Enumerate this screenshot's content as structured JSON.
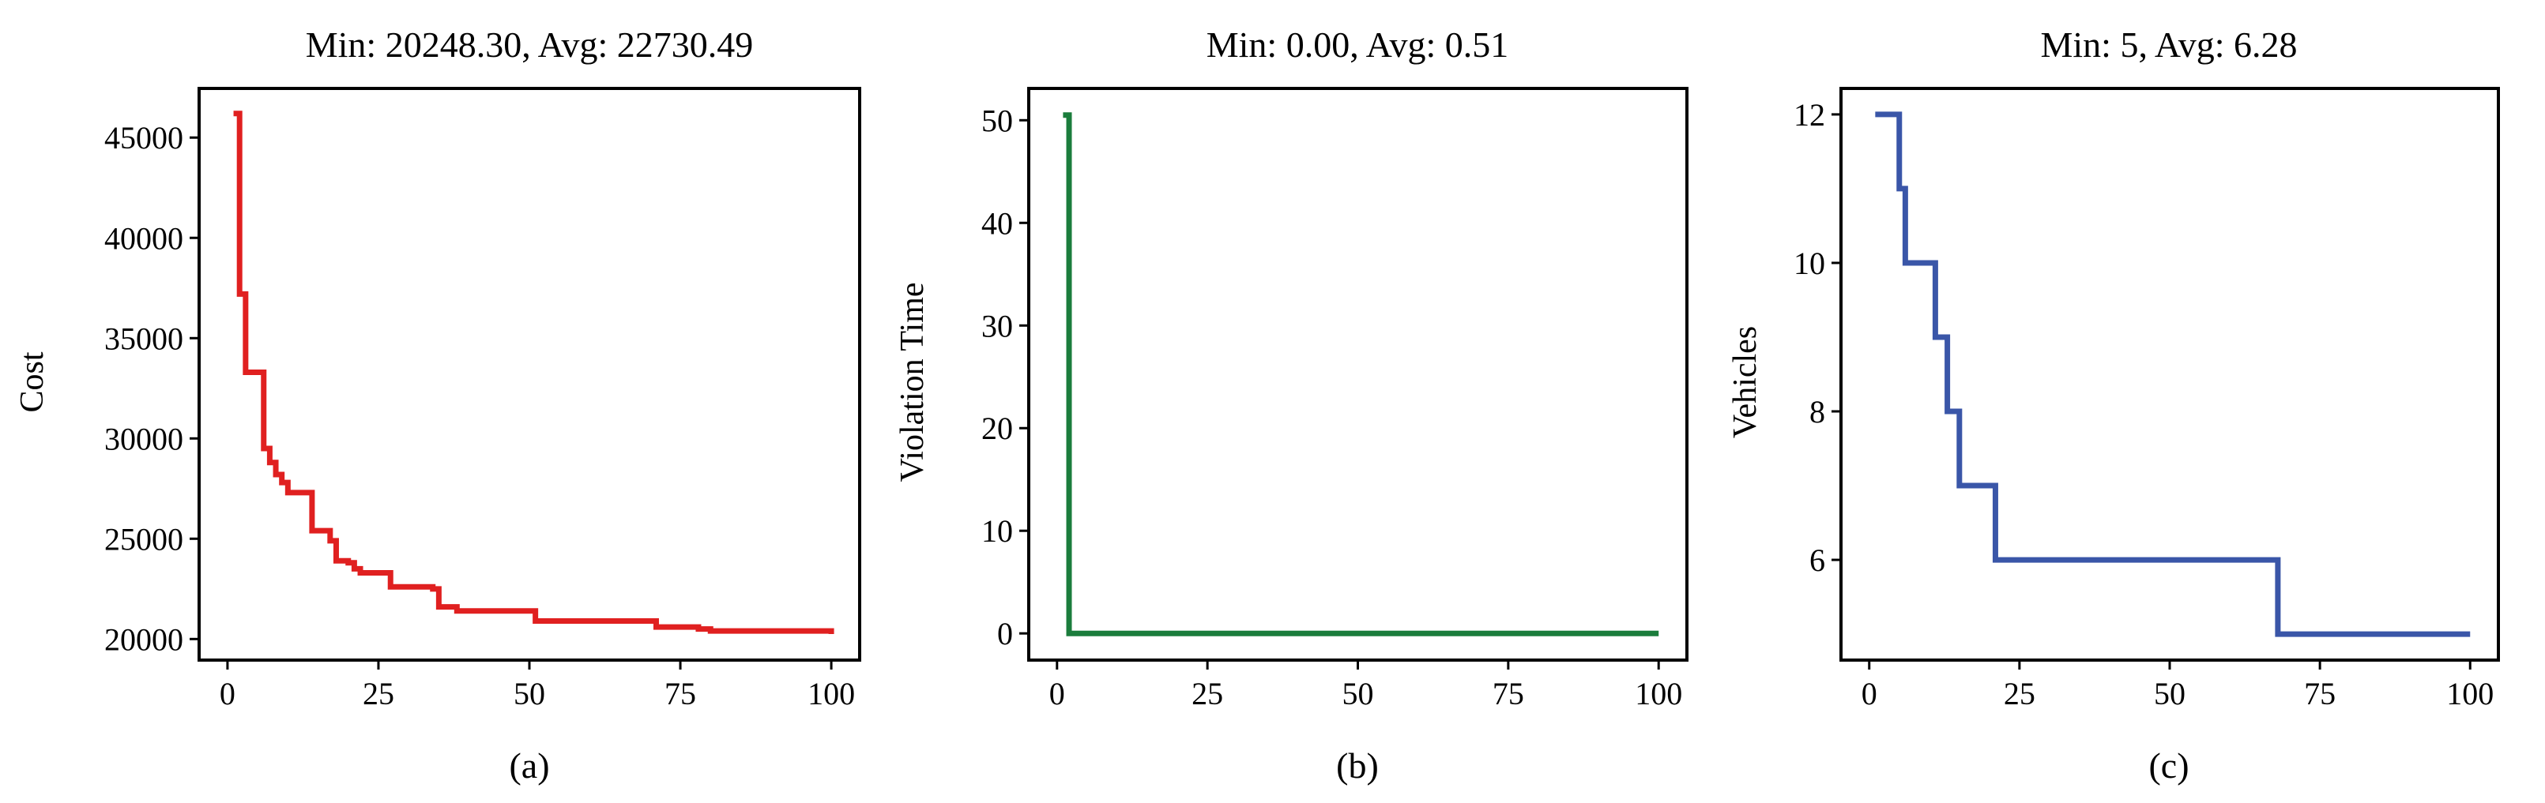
{
  "chart_data": [
    {
      "type": "line",
      "title": "Min: 20248.30, Avg: 22730.49",
      "xlabel": "",
      "ylabel": "Cost",
      "caption": "(a)",
      "xlim": [
        -4.7,
        104.7
      ],
      "ylim": [
        18950,
        47450
      ],
      "xticks": [
        0,
        25,
        50,
        75,
        100
      ],
      "yticks": [
        20000,
        25000,
        30000,
        35000,
        40000,
        45000
      ],
      "grid": false,
      "color": "#e02020",
      "series": [
        {
          "step": true,
          "x": [
            1,
            2,
            3,
            6,
            7,
            8,
            9,
            10,
            14,
            17,
            18,
            20,
            21,
            22,
            27,
            34,
            35,
            38,
            51,
            71,
            78,
            80,
            100
          ],
          "y": [
            46200,
            37200,
            33300,
            29500,
            28800,
            28200,
            27800,
            27300,
            25400,
            24900,
            23900,
            23800,
            23500,
            23300,
            22600,
            22500,
            21600,
            21400,
            20900,
            20600,
            20500,
            20400,
            20250
          ]
        }
      ]
    },
    {
      "type": "line",
      "title": "Min: 0.00, Avg: 0.51",
      "xlabel": "",
      "ylabel": "Violation Time",
      "caption": "(b)",
      "xlim": [
        -4.7,
        104.7
      ],
      "ylim": [
        -2.6,
        53.1
      ],
      "xticks": [
        0,
        25,
        50,
        75,
        100
      ],
      "yticks": [
        0,
        10,
        20,
        30,
        40,
        50
      ],
      "grid": false,
      "color": "#1b7d3c",
      "series": [
        {
          "step": true,
          "x": [
            1,
            2,
            100
          ],
          "y": [
            50.5,
            0,
            0
          ]
        }
      ]
    },
    {
      "type": "line",
      "title": "Min: 5, Avg: 6.28",
      "xlabel": "",
      "ylabel": "Vehicles",
      "caption": "(c)",
      "xlim": [
        -4.7,
        104.7
      ],
      "ylim": [
        4.65,
        12.35
      ],
      "xticks": [
        0,
        25,
        50,
        75,
        100
      ],
      "yticks": [
        6,
        8,
        10,
        12
      ],
      "grid": false,
      "color": "#3a56a8",
      "series": [
        {
          "step": true,
          "x": [
            1,
            5,
            6,
            8,
            11,
            13,
            15,
            21,
            68,
            100
          ],
          "y": [
            12,
            11,
            10,
            10,
            9,
            8,
            7,
            6,
            5,
            5
          ]
        }
      ]
    }
  ]
}
